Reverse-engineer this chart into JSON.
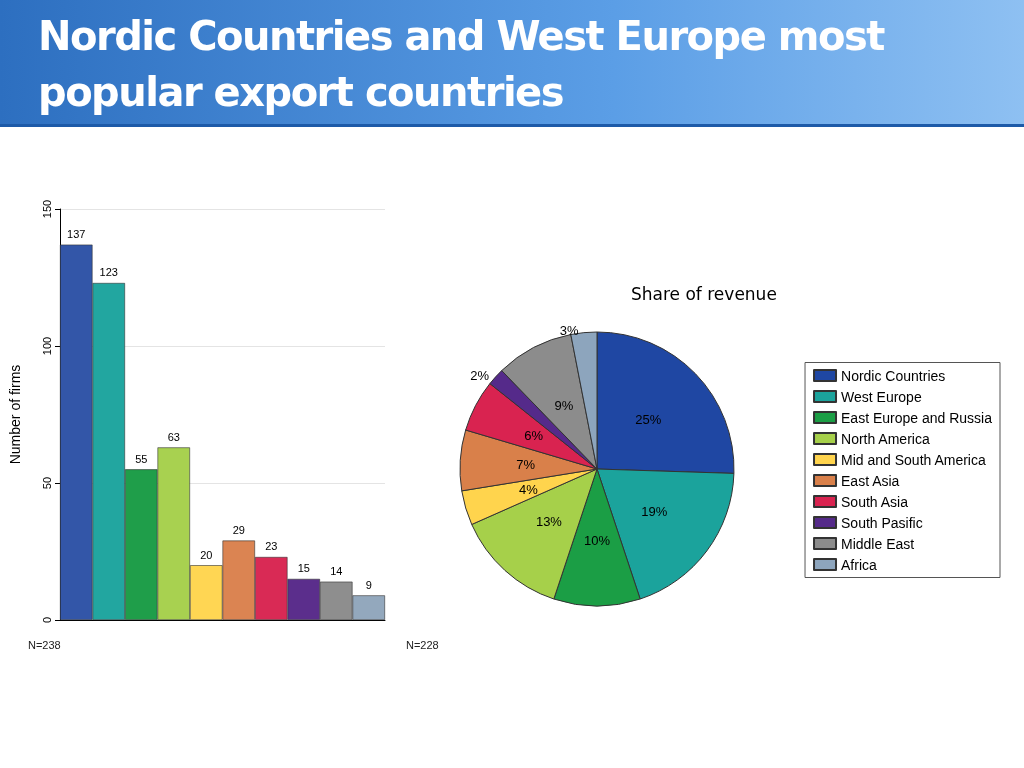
{
  "chart_data": [
    {
      "type": "bar",
      "title": "Nordic Countries and West Europe most popular export countries",
      "ylabel": "Number of firms",
      "categories": [
        null,
        null,
        null,
        null,
        null,
        null,
        null,
        null,
        null,
        null
      ],
      "values": [
        137,
        123,
        55,
        63,
        20,
        29,
        23,
        15,
        14,
        9
      ],
      "colors": [
        "#3356a8",
        "#22a6a0",
        "#1f9e4a",
        "#a8d150",
        "#ffd653",
        "#db8452",
        "#d92a55",
        "#5b2e8c",
        "#8e8e8e",
        "#93a8bd"
      ],
      "data_labels": true,
      "ylim": [
        0,
        150
      ],
      "yticks": [
        0,
        50,
        100,
        150
      ],
      "grid": "y",
      "annotations": [
        "N=238"
      ]
    },
    {
      "type": "pie",
      "title": "Share of revenue",
      "categories": [
        "Nordic Countries",
        "West Europe",
        "East Europe and Russia",
        "North America",
        "Mid and South America",
        "East Asia",
        "South Asia",
        "South Pasific",
        "Middle East",
        "Africa"
      ],
      "values": [
        25,
        19,
        10,
        13,
        4,
        7,
        6,
        2,
        9,
        3
      ],
      "colors": [
        "#1f47a3",
        "#1ba39c",
        "#1b9e45",
        "#a6d04a",
        "#ffd44d",
        "#d9804a",
        "#d92350",
        "#552a8a",
        "#8c8c8c",
        "#8da5bd"
      ],
      "value_labels": [
        "25%",
        "19%",
        "10%",
        "13%",
        "4%",
        "7%",
        "6%",
        "2%",
        "9%",
        "3%"
      ],
      "legend": "right",
      "annotations": [
        "N=228"
      ]
    }
  ]
}
